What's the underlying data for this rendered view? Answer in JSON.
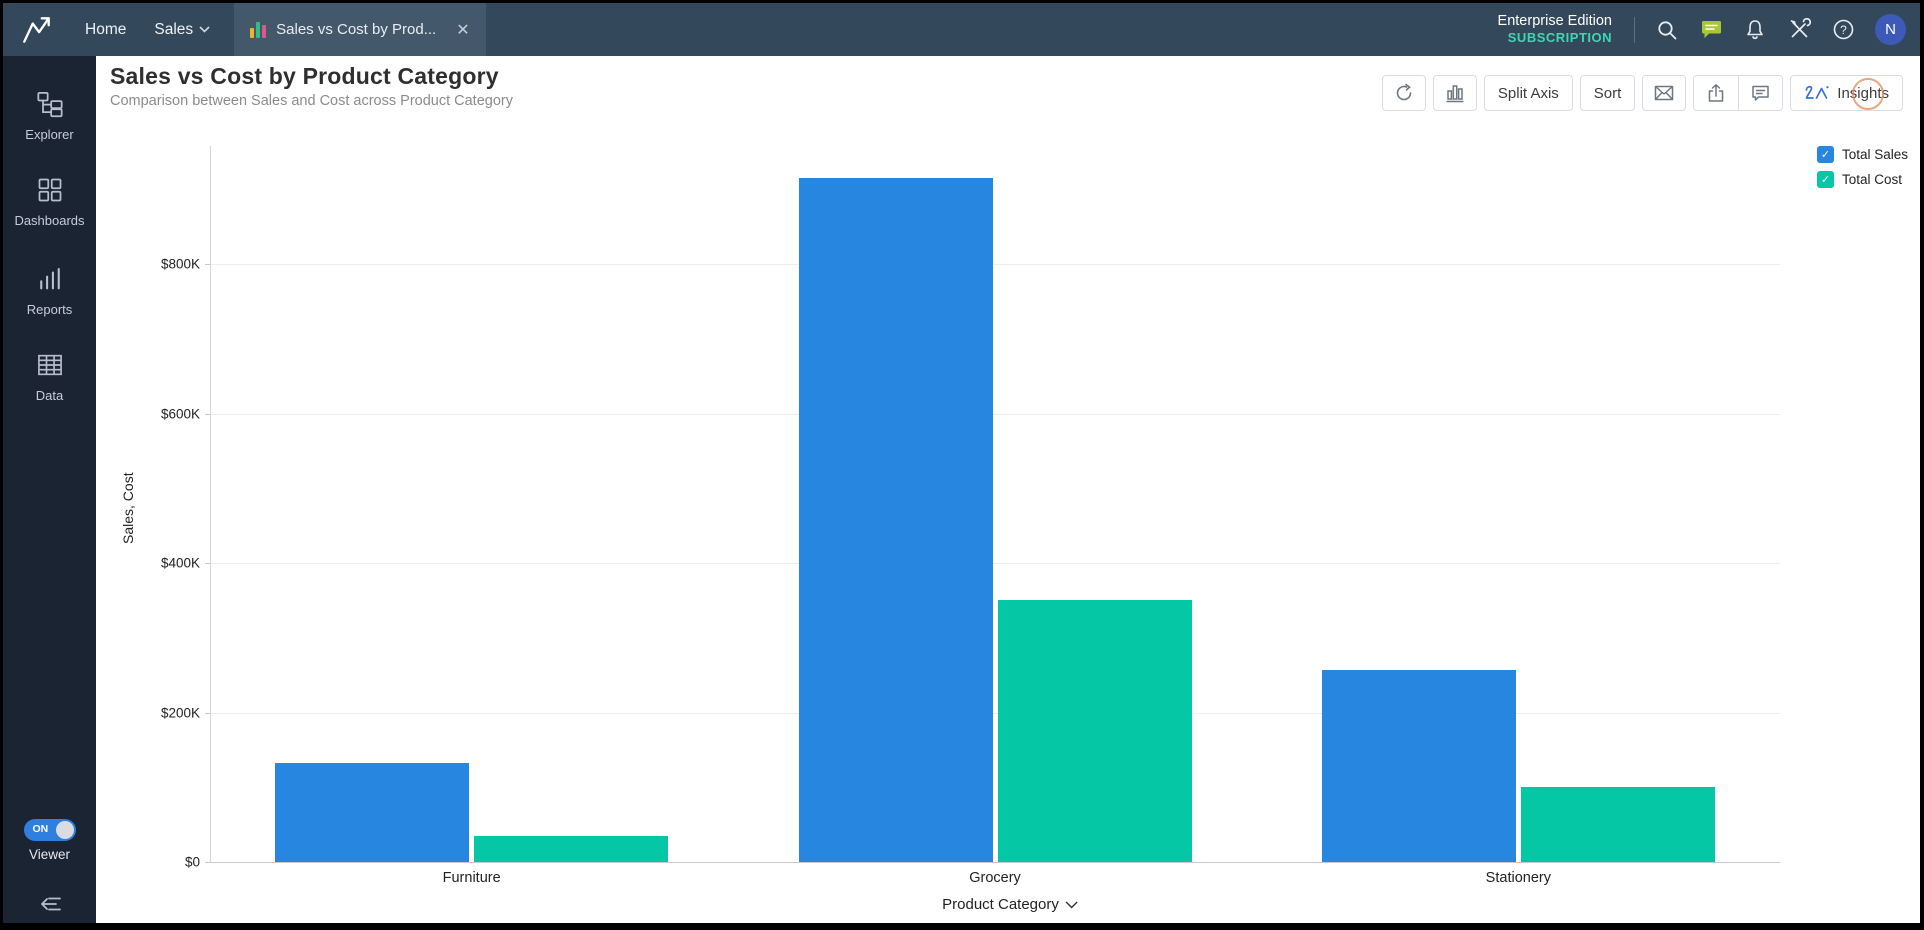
{
  "top_nav": {
    "home": "Home",
    "workspace": "Sales",
    "tab_title": "Sales vs Cost by Prod...",
    "tab_close": "✕",
    "edition": "Enterprise Edition",
    "subscription": "SUBSCRIPTION",
    "subscription_color": "#3fd6b5",
    "avatar_initial": "N"
  },
  "sidebar": {
    "items": [
      {
        "label": "Explorer"
      },
      {
        "label": "Dashboards"
      },
      {
        "label": "Reports"
      },
      {
        "label": "Data"
      }
    ],
    "viewer_toggle": {
      "state": "ON",
      "label": "Viewer"
    }
  },
  "header": {
    "title": "Sales vs Cost by Product Category",
    "subtitle": "Comparison between Sales and Cost across Product Category"
  },
  "toolbar": {
    "split_axis": "Split Axis",
    "sort": "Sort",
    "insights": "Insights"
  },
  "legend": [
    {
      "label": "Total Sales",
      "color": "#2787e0",
      "checked": true
    },
    {
      "label": "Total Cost",
      "color": "#06c7a5",
      "checked": true
    }
  ],
  "chart_data": {
    "type": "bar",
    "title": "Sales vs Cost by Product Category",
    "categories": [
      "Furniture",
      "Grocery",
      "Stationery"
    ],
    "series": [
      {
        "name": "Total Sales",
        "color": "#2787e0",
        "values": [
          133000,
          915000,
          257000
        ]
      },
      {
        "name": "Total Cost",
        "color": "#06c7a5",
        "values": [
          35000,
          350000,
          100000
        ]
      }
    ],
    "xlabel": "Product Category",
    "ylabel": "Sales, Cost",
    "ylim": [
      0,
      900000
    ],
    "ytick_values": [
      0,
      200000,
      400000,
      600000,
      800000
    ],
    "ytick_labels": [
      "$0",
      "$200K",
      "$400K",
      "$600K",
      "$800K"
    ],
    "grid": "horizontal",
    "legend_position": "top-right"
  }
}
